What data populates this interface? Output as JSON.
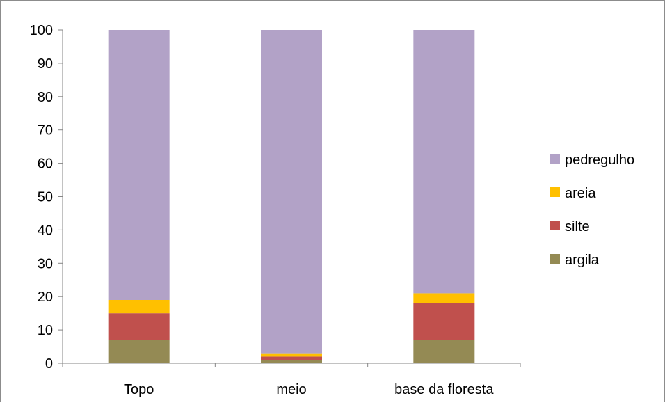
{
  "chart_data": {
    "type": "bar",
    "stacked": true,
    "categories": [
      "Topo",
      "meio",
      "base da floresta"
    ],
    "series": [
      {
        "name": "argila",
        "values": [
          7,
          1,
          7
        ],
        "color": "#948a54"
      },
      {
        "name": "silte",
        "values": [
          8,
          1,
          11
        ],
        "color": "#c0504d"
      },
      {
        "name": "areia",
        "values": [
          4,
          1,
          3
        ],
        "color": "#ffc000"
      },
      {
        "name": "pedregulho",
        "values": [
          81,
          97,
          79
        ],
        "color": "#b2a2c7"
      }
    ],
    "ylim": [
      0,
      100
    ],
    "yticks": [
      0,
      10,
      20,
      30,
      40,
      50,
      60,
      70,
      80,
      90,
      100
    ],
    "grid": false,
    "legend_position": "right",
    "legend_order": [
      "pedregulho",
      "areia",
      "silte",
      "argila"
    ]
  }
}
